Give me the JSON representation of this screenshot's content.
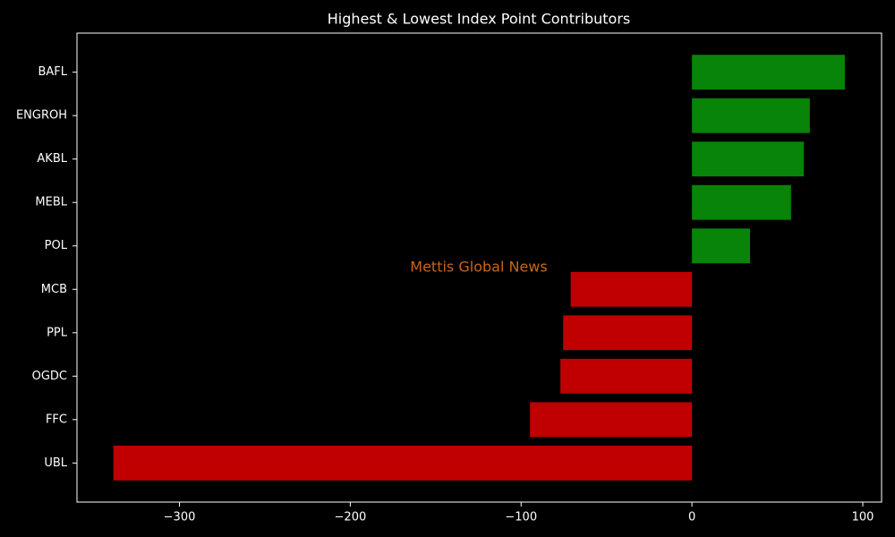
{
  "chart_data": {
    "type": "barh",
    "title": "Highest & Lowest Index Point Contributors",
    "annotation": "Mettis Global News",
    "categories": [
      "BAFL",
      "ENGROH",
      "AKBL",
      "MEBL",
      "POL",
      "MCB",
      "PPL",
      "OGDC",
      "FFC",
      "UBL"
    ],
    "values": [
      89.5,
      69,
      65.5,
      58,
      34,
      -71,
      -75.4,
      -77,
      -94.8,
      -338.7
    ],
    "colors": [
      "#088408",
      "#088408",
      "#088408",
      "#088408",
      "#088408",
      "#c00000",
      "#c00000",
      "#c00000",
      "#c00000",
      "#c00000"
    ],
    "xlim": [
      -360,
      111
    ],
    "xticks": [
      {
        "value": -300,
        "label": "−300"
      },
      {
        "value": -200,
        "label": "−200"
      },
      {
        "value": -100,
        "label": "−100"
      },
      0,
      100
    ],
    "grid": false
  }
}
